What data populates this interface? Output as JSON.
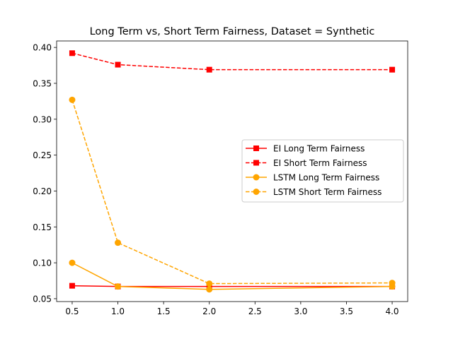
{
  "chart_data": {
    "type": "line",
    "title": "Long Term vs, Short Term Fairness, Dataset = Synthetic",
    "xlabel": "",
    "ylabel": "",
    "xlim": [
      0.33,
      4.17
    ],
    "ylim": [
      0.046,
      0.409
    ],
    "x_ticks": [
      0.5,
      1.0,
      1.5,
      2.0,
      2.5,
      3.0,
      3.5,
      4.0
    ],
    "x_tick_labels": [
      "0.5",
      "1.0",
      "1.5",
      "2.0",
      "2.5",
      "3.0",
      "3.5",
      "4.0"
    ],
    "y_ticks": [
      0.05,
      0.1,
      0.15,
      0.2,
      0.25,
      0.3,
      0.35,
      0.4
    ],
    "y_tick_labels": [
      "0.05",
      "0.10",
      "0.15",
      "0.20",
      "0.25",
      "0.30",
      "0.35",
      "0.40"
    ],
    "grid": false,
    "legend_position": "center-right",
    "series": [
      {
        "name": "EI Long Term Fairness",
        "color": "#ff0000",
        "linestyle": "solid",
        "marker": "square",
        "x": [
          0.5,
          1.0,
          2.0,
          4.0
        ],
        "y": [
          0.068,
          0.067,
          0.067,
          0.067
        ]
      },
      {
        "name": "EI Short Term Fairness",
        "color": "#ff0000",
        "linestyle": "dashed",
        "marker": "square",
        "x": [
          0.5,
          1.0,
          2.0,
          4.0
        ],
        "y": [
          0.392,
          0.376,
          0.369,
          0.369
        ]
      },
      {
        "name": "LSTM Long Term Fairness",
        "color": "#ffa500",
        "linestyle": "solid",
        "marker": "circle",
        "x": [
          0.5,
          1.0,
          2.0,
          4.0
        ],
        "y": [
          0.1,
          0.067,
          0.063,
          0.067
        ]
      },
      {
        "name": "LSTM Short Term Fairness",
        "color": "#ffa500",
        "linestyle": "dashed",
        "marker": "circle",
        "x": [
          0.5,
          1.0,
          2.0,
          4.0
        ],
        "y": [
          0.327,
          0.128,
          0.071,
          0.072
        ]
      }
    ]
  }
}
